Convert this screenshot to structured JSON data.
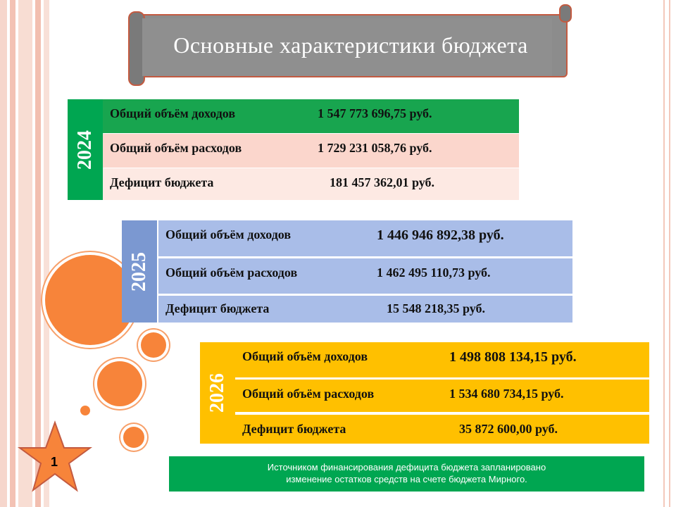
{
  "title": "Основные характеристики бюджета",
  "blocks": [
    {
      "year": "2024",
      "rows": [
        {
          "label": "Общий объём доходов",
          "value": "1 547 773 696,75 руб."
        },
        {
          "label": "Общий объём расходов",
          "value": "1 729 231 058,76 руб."
        },
        {
          "label": "Дефицит бюджета",
          "value": "181 457 362,01  руб."
        }
      ]
    },
    {
      "year": "2025",
      "rows": [
        {
          "label": "Общий объём доходов",
          "value": "1 446 946 892,38 руб."
        },
        {
          "label": "Общий объём расходов",
          "value": "1 462 495 110,73 руб."
        },
        {
          "label": "Дефицит бюджета",
          "value": "15 548 218,35 руб."
        }
      ]
    },
    {
      "year": "2026",
      "rows": [
        {
          "label": "Общий объём доходов",
          "value": "1 498 808 134,15 руб."
        },
        {
          "label": "Общий объём расходов",
          "value": "1 534 680 734,15 руб."
        },
        {
          "label": "Дефицит бюджета",
          "value": "35 872 600,00 руб."
        }
      ]
    }
  ],
  "note": {
    "line1": "Источником финансирования дефицита бюджета запланировано",
    "line2": "изменение остатков средств на счете бюджета Мирного."
  },
  "page_number": "1",
  "colors": {
    "accent_orange": "#f7843a",
    "year_2024": "#00a651",
    "year_2025": "#7b98d1",
    "year_2026": "#ffc000",
    "note_bg": "#00a651"
  }
}
